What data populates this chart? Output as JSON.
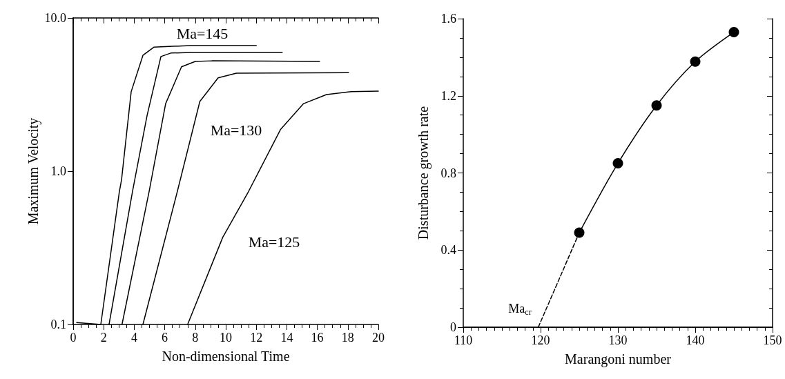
{
  "chart_data": [
    {
      "type": "line",
      "xlabel": "Non-dimensional Time",
      "ylabel": "Maximum Velocity",
      "log": "y",
      "xlim": [
        0,
        20
      ],
      "xticks": [
        0,
        2,
        4,
        6,
        8,
        10,
        12,
        14,
        16,
        18,
        20
      ],
      "ylim": [
        0.1,
        10
      ],
      "yticks": [
        {
          "value": 0.1,
          "label": "0.1"
        },
        {
          "value": 1,
          "label": "1.0"
        },
        {
          "value": 10,
          "label": "10.0"
        }
      ],
      "grid": false,
      "marker": "none",
      "line_style": "solid",
      "annotations": [
        "Ma=145",
        "Ma=130",
        "Ma=125"
      ],
      "series": [
        {
          "color": "#000000",
          "x": [
            0.23,
            1.81,
            3.03,
            3.17,
            3.8,
            4.57,
            5.3,
            7.7,
            12.0
          ],
          "values": [
            0.103,
            0.1,
            0.74,
            0.88,
            3.3,
            5.7,
            6.46,
            6.6,
            6.6
          ]
        },
        {
          "color": "#000000",
          "x": [
            2.35,
            3.89,
            4.84,
            5.75,
            6.4,
            7.7,
            13.7
          ],
          "values": [
            0.1,
            0.74,
            2.3,
            5.6,
            5.9,
            5.96,
            5.96
          ]
        },
        {
          "color": "#000000",
          "x": [
            3.2,
            4.98,
            6.06,
            7.1,
            8.0,
            9.1,
            16.15
          ],
          "values": [
            0.1,
            0.74,
            2.76,
            4.8,
            5.2,
            5.25,
            5.2
          ]
        },
        {
          "color": "#000000",
          "x": [
            4.57,
            6.83,
            8.3,
            9.5,
            10.7,
            18.05
          ],
          "values": [
            0.1,
            0.74,
            2.85,
            4.07,
            4.36,
            4.4
          ]
        },
        {
          "color": "#000000",
          "x": [
            7.5,
            9.8,
            11.5,
            13.6,
            15.1,
            16.6,
            18.1,
            20
          ],
          "values": [
            0.1,
            0.37,
            0.74,
            1.88,
            2.76,
            3.16,
            3.3,
            3.33
          ]
        }
      ]
    },
    {
      "type": "line",
      "xlabel": "Marangoni number",
      "ylabel": "Disturbance growth rate",
      "xlim": [
        110,
        150
      ],
      "xticks": [
        110,
        120,
        130,
        140,
        150
      ],
      "ylim": [
        0,
        1.6
      ],
      "yticks": [
        0,
        0.4,
        0.8,
        1.2,
        1.6
      ],
      "grid": false,
      "annotations": [
        "Ma$_{cr}$"
      ],
      "series": [
        {
          "color": "#000000",
          "marker": "circle",
          "line_style": "solid",
          "x": [
            125,
            130,
            135,
            140,
            145
          ],
          "values": [
            0.49,
            0.85,
            1.15,
            1.377,
            1.53
          ]
        },
        {
          "color": "#000000",
          "marker": "none",
          "line_style": "dashed",
          "x": [
            119.7,
            125
          ],
          "values": [
            0,
            0.49
          ]
        }
      ]
    }
  ]
}
